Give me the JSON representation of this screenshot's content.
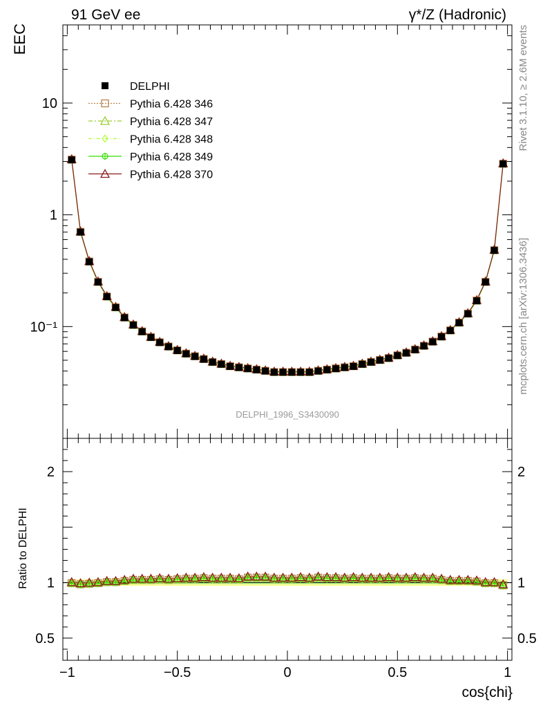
{
  "header": {
    "left_title": "91 GeV ee",
    "right_title": "γ*/Z (Hadronic)"
  },
  "side_labels": {
    "rivet": "Rivet 3.1.10, ≥ 2.6M events",
    "mcplots": "mcplots.cern.ch [arXiv:1306.3436]"
  },
  "analysis_label": "DELPHI_1996_S3430090",
  "colors": {
    "data": "#000000",
    "p346": "#b5824a",
    "p347": "#9acd32",
    "p348": "#adff2f",
    "p349": "#33dd00",
    "p370": "#8b1a1a",
    "band_yellow": "#ffff99",
    "band_green": "#b8f58a"
  },
  "chart_data": [
    {
      "type": "line",
      "panel": "main",
      "ylabel": "EEC",
      "yscale": "log",
      "ylim": [
        0.01,
        50
      ],
      "xlim": [
        -1.02,
        1.02
      ],
      "ytick_labels": [
        "10",
        "1",
        "10⁻¹"
      ],
      "ytick_values": [
        10,
        1,
        0.1
      ],
      "x": [
        -0.98,
        -0.94,
        -0.9,
        -0.86,
        -0.82,
        -0.78,
        -0.74,
        -0.7,
        -0.66,
        -0.62,
        -0.58,
        -0.54,
        -0.5,
        -0.46,
        -0.42,
        -0.38,
        -0.34,
        -0.3,
        -0.26,
        -0.22,
        -0.18,
        -0.14,
        -0.1,
        -0.06,
        -0.02,
        0.02,
        0.06,
        0.1,
        0.14,
        0.18,
        0.22,
        0.26,
        0.3,
        0.34,
        0.38,
        0.42,
        0.46,
        0.5,
        0.54,
        0.58,
        0.62,
        0.66,
        0.7,
        0.74,
        0.78,
        0.82,
        0.86,
        0.9,
        0.94,
        0.98
      ],
      "data_values": [
        3.1,
        0.7,
        0.38,
        0.25,
        0.185,
        0.148,
        0.12,
        0.103,
        0.09,
        0.08,
        0.072,
        0.066,
        0.061,
        0.057,
        0.054,
        0.051,
        0.048,
        0.046,
        0.044,
        0.043,
        0.042,
        0.041,
        0.04,
        0.039,
        0.039,
        0.039,
        0.039,
        0.039,
        0.04,
        0.041,
        0.042,
        0.043,
        0.044,
        0.046,
        0.048,
        0.05,
        0.052,
        0.055,
        0.058,
        0.062,
        0.067,
        0.073,
        0.081,
        0.092,
        0.108,
        0.13,
        0.17,
        0.25,
        0.48,
        2.85
      ],
      "legend": [
        {
          "name": "DELPHI",
          "marker": "square-filled",
          "color_key": "data"
        },
        {
          "name": "Pythia 6.428 346",
          "marker": "square-open",
          "color_key": "p346"
        },
        {
          "name": "Pythia 6.428 347",
          "marker": "triangle-open",
          "color_key": "p347"
        },
        {
          "name": "Pythia 6.428 348",
          "marker": "diamond-open",
          "color_key": "p348"
        },
        {
          "name": "Pythia 6.428 349",
          "marker": "circle-cross",
          "color_key": "p349"
        },
        {
          "name": "Pythia 6.428 370",
          "marker": "triangle-open",
          "color_key": "p370"
        }
      ]
    },
    {
      "type": "line",
      "panel": "ratio",
      "ylabel": "Ratio to DELPHI",
      "xlabel": "cos{chi}",
      "ylim": [
        0.3,
        2.3
      ],
      "xlim": [
        -1.02,
        1.02
      ],
      "ytick_labels": [
        "2",
        "1",
        "0.5"
      ],
      "ytick_values": [
        2,
        1,
        0.5
      ],
      "xtick_labels": [
        "−1",
        "−0.5",
        "0",
        "0.5",
        "1"
      ],
      "xtick_values": [
        -1,
        -0.5,
        0,
        0.5,
        1
      ],
      "ratio_values": [
        1.0,
        0.99,
        0.995,
        1.0,
        1.01,
        1.01,
        1.02,
        1.03,
        1.03,
        1.03,
        1.035,
        1.03,
        1.035,
        1.04,
        1.04,
        1.045,
        1.04,
        1.04,
        1.04,
        1.035,
        1.05,
        1.05,
        1.05,
        1.04,
        1.04,
        1.04,
        1.045,
        1.04,
        1.05,
        1.045,
        1.045,
        1.04,
        1.045,
        1.04,
        1.04,
        1.04,
        1.045,
        1.04,
        1.04,
        1.045,
        1.04,
        1.04,
        1.03,
        1.02,
        1.02,
        1.02,
        1.015,
        1.0,
        1.0,
        0.98
      ]
    }
  ]
}
